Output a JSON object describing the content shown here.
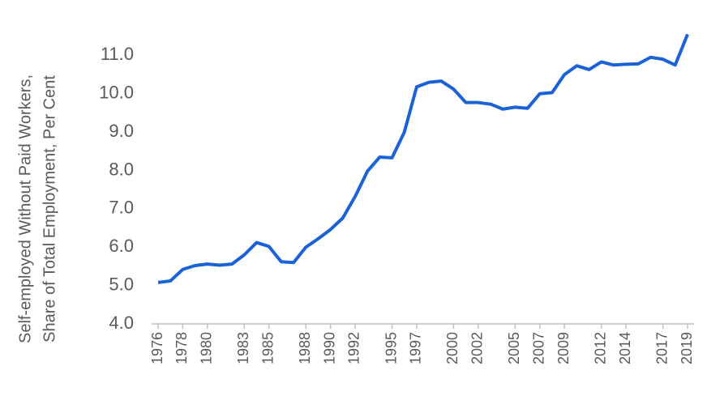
{
  "chart_data": {
    "type": "line",
    "y_label": [
      "Self-employed Without Paid Workers,",
      "Share of Total Employment, Per Cent"
    ],
    "categories": [
      "1976",
      null,
      "1978",
      null,
      "1980",
      null,
      null,
      "1983",
      null,
      "1985",
      null,
      null,
      "1988",
      null,
      "1990",
      null,
      "1992",
      null,
      null,
      "1995",
      null,
      "1997",
      null,
      null,
      "2000",
      null,
      "2002",
      null,
      null,
      "2005",
      null,
      "2007",
      null,
      "2009",
      null,
      null,
      "2012",
      null,
      "2014",
      null,
      null,
      "2017",
      null,
      "2019"
    ],
    "series": [
      {
        "color": "#1a62d6",
        "values": [
          5.08,
          5.12,
          5.42,
          5.52,
          5.56,
          5.53,
          5.56,
          5.8,
          6.12,
          6.02,
          5.62,
          5.6,
          6.0,
          6.22,
          6.46,
          6.76,
          7.32,
          7.98,
          8.35,
          8.33,
          9.0,
          10.18,
          10.3,
          10.33,
          10.12,
          9.77,
          9.77,
          9.73,
          9.6,
          9.65,
          9.62,
          10.0,
          10.03,
          10.5,
          10.73,
          10.63,
          10.83,
          10.75,
          10.77,
          10.78,
          10.95,
          10.9,
          10.75,
          11.55
        ]
      }
    ],
    "ylim": [
      4,
      11.6
    ],
    "yticks": [
      {
        "value": 4,
        "label": "4.0"
      },
      {
        "value": 5,
        "label": "5.0"
      },
      {
        "value": 6,
        "label": "6.0"
      },
      {
        "value": 7,
        "label": "7.0"
      },
      {
        "value": 8,
        "label": "8.0"
      },
      {
        "value": 9,
        "label": "9.0"
      },
      {
        "value": 10,
        "label": "10.0"
      },
      {
        "value": 11,
        "label": "11.0"
      }
    ],
    "grid": false
  }
}
